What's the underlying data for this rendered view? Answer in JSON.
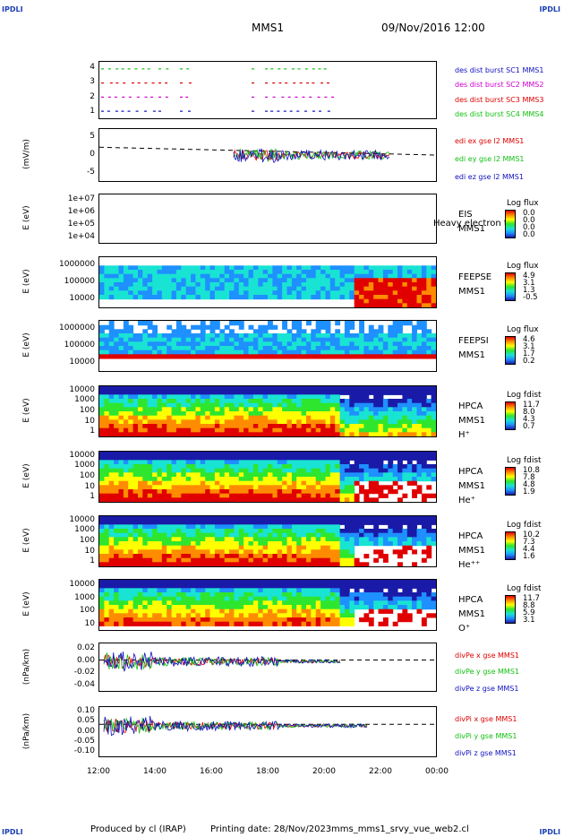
{
  "corners": {
    "tl": "IPDLI",
    "tr": "IPDLI",
    "bl": "IPDLI",
    "br": "IPDLI"
  },
  "header": {
    "spacecraft": "MMS1",
    "datetime": "09/Nov/2016 12:00"
  },
  "footer": {
    "produced": "Produced by cl (IRAP)",
    "printing": "Printing date: 28/Nov/2023",
    "file": "mms_mms1_srvy_vue_web2.cl"
  },
  "x_axis": {
    "ticks": [
      "12:00",
      "14:00",
      "16:00",
      "18:00",
      "20:00",
      "22:00",
      "00:00"
    ]
  },
  "colors": {
    "red": "#e00000",
    "green": "#12c012",
    "blue": "#1010c0",
    "magenta": "#d000d0",
    "accent": "#1a3fb4"
  },
  "chart_data": [
    {
      "type": "scatter",
      "title": "",
      "ylabel": "",
      "yticks": [
        "4",
        "3",
        "2",
        "1"
      ],
      "series": [
        {
          "name": "des dist burst SC1 MMS1",
          "color": "blue"
        },
        {
          "name": "des dist burst SC2 MMS2",
          "color": "magenta"
        },
        {
          "name": "des dist burst SC3 MMS3",
          "color": "red"
        },
        {
          "name": "des dist burst SC4 MMS4",
          "color": "green"
        }
      ]
    },
    {
      "type": "line",
      "ylabel": "(mV/m)",
      "yticks": [
        "5",
        "0",
        "-5"
      ],
      "series": [
        {
          "name": "edi ex gse l2 MMS1",
          "color": "red"
        },
        {
          "name": "edi ey gse l2 MMS1",
          "color": "green"
        },
        {
          "name": "edi ez gse l2 MMS1",
          "color": "blue"
        }
      ]
    },
    {
      "type": "heatmap",
      "ylabel": "E (eV)",
      "yticks": [
        "1e+07",
        "1e+06",
        "1e+05",
        "1e+04"
      ],
      "labels": [
        "EIS",
        "MMS1"
      ],
      "overlay": "Heavy electron to",
      "cbar_title": "Log flux",
      "cbar_values": [
        "0.0",
        "0.0",
        "0.0",
        "0.0"
      ]
    },
    {
      "type": "heatmap",
      "ylabel": "E (eV)",
      "yticks": [
        "1000000",
        "100000",
        "10000"
      ],
      "labels": [
        "FEEPSE",
        "MMS1"
      ],
      "cbar_title": "Log flux",
      "cbar_values": [
        "4.9",
        "3.1",
        "1.3",
        "-0.5"
      ]
    },
    {
      "type": "heatmap",
      "ylabel": "E (eV)",
      "yticks": [
        "1000000",
        "100000",
        "10000"
      ],
      "labels": [
        "FEEPSI",
        "MMS1"
      ],
      "cbar_title": "Log flux",
      "cbar_values": [
        "4.6",
        "3.1",
        "1.7",
        "0.2"
      ]
    },
    {
      "type": "heatmap",
      "ylabel": "E (eV)",
      "yticks": [
        "10000",
        "1000",
        "100",
        "10",
        "1"
      ],
      "labels": [
        "HPCA",
        "MMS1",
        "H⁺"
      ],
      "cbar_title": "Log fdist",
      "cbar_values": [
        "11.7",
        "8.0",
        "4.3",
        "0.7"
      ]
    },
    {
      "type": "heatmap",
      "ylabel": "E (eV)",
      "yticks": [
        "10000",
        "1000",
        "100",
        "10",
        "1"
      ],
      "labels": [
        "HPCA",
        "MMS1",
        "He⁺"
      ],
      "cbar_title": "Log fdist",
      "cbar_values": [
        "10.8",
        "7.8",
        "4.8",
        "1.9"
      ]
    },
    {
      "type": "heatmap",
      "ylabel": "E (eV)",
      "yticks": [
        "10000",
        "1000",
        "100",
        "10",
        "1"
      ],
      "labels": [
        "HPCA",
        "MMS1",
        "He⁺⁺"
      ],
      "cbar_title": "Log fdist",
      "cbar_values": [
        "10.2",
        "7.3",
        "4.4",
        "1.6"
      ]
    },
    {
      "type": "heatmap",
      "ylabel": "E (eV)",
      "yticks": [
        "10000",
        "1000",
        "100",
        "10"
      ],
      "labels": [
        "HPCA",
        "MMS1",
        "O⁺"
      ],
      "cbar_title": "Log fdist",
      "cbar_values": [
        "11.7",
        "8.8",
        "5.9",
        "3.1"
      ]
    },
    {
      "type": "line",
      "ylabel": "(nPa/km)",
      "yticks": [
        "0.02",
        "0.00",
        "-0.02",
        "-0.04"
      ],
      "series": [
        {
          "name": "divPe x gse MMS1",
          "color": "red"
        },
        {
          "name": "divPe y gse MMS1",
          "color": "green"
        },
        {
          "name": "divPe z gse MMS1",
          "color": "blue"
        }
      ]
    },
    {
      "type": "line",
      "ylabel": "(nPa/km)",
      "yticks": [
        "0.10",
        "0.05",
        "0.00",
        "-0.05",
        "-0.10"
      ],
      "series": [
        {
          "name": "divPi x gse MMS1",
          "color": "red"
        },
        {
          "name": "divPi y gse MMS1",
          "color": "green"
        },
        {
          "name": "divPi z gse MMS1",
          "color": "blue"
        }
      ]
    }
  ]
}
